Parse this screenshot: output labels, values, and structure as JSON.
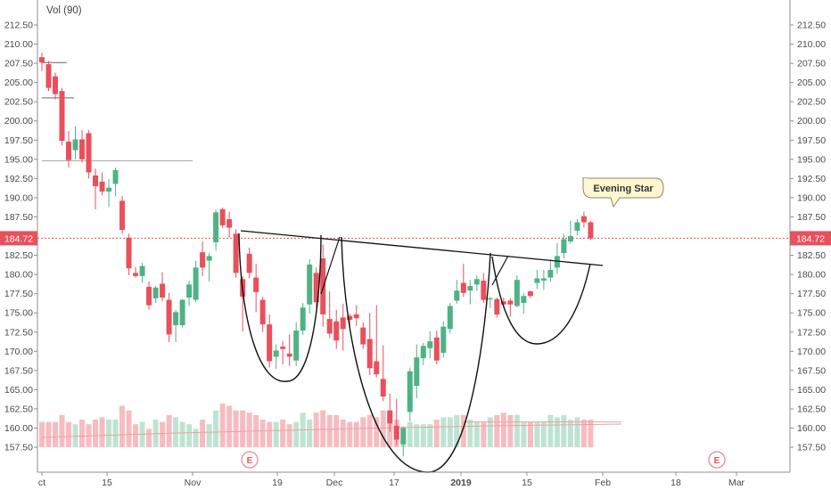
{
  "chart_data": {
    "type": "candlestick",
    "volume_label": "Vol (90)",
    "ylim": [
      155,
      212.5
    ],
    "y_ticks": [
      "157.50",
      "160.00",
      "162.50",
      "165.00",
      "167.50",
      "170.00",
      "172.50",
      "175.00",
      "177.50",
      "180.00",
      "182.50",
      "185.00",
      "187.50",
      "190.00",
      "192.50",
      "195.00",
      "197.50",
      "200.00",
      "202.50",
      "205.00",
      "207.50",
      "210.00",
      "212.50"
    ],
    "x_ticks": [
      "ct",
      "15",
      "Nov",
      "19",
      "Dec",
      "17",
      "2019",
      "15",
      "Feb",
      "18",
      "Mar"
    ],
    "last_price": "184.72",
    "annotations": {
      "pattern_callout": "Evening Star",
      "earnings_marker": "E"
    },
    "colors": {
      "up": "#4fb286",
      "down": "#e8505b",
      "volume_up": "#bfe3d2",
      "volume_down": "#f6bcc1",
      "price_line": "#e8505b",
      "callout_bg": "#fdf6cf",
      "callout_border": "#8a8a6a"
    },
    "candles": [
      {
        "o": 208.3,
        "h": 208.9,
        "l": 206.5,
        "c": 207.6
      },
      {
        "o": 207.4,
        "h": 207.8,
        "l": 203.9,
        "c": 204.3
      },
      {
        "o": 205.8,
        "h": 206.3,
        "l": 202.8,
        "c": 203.5
      },
      {
        "o": 203.9,
        "h": 204.3,
        "l": 196.8,
        "c": 197.4
      },
      {
        "o": 197.3,
        "h": 198.7,
        "l": 193.9,
        "c": 194.9
      },
      {
        "o": 196.2,
        "h": 199.3,
        "l": 195.0,
        "c": 197.6
      },
      {
        "o": 197.6,
        "h": 198.8,
        "l": 194.6,
        "c": 195.0
      },
      {
        "o": 198.4,
        "h": 198.8,
        "l": 192.5,
        "c": 193.3
      },
      {
        "o": 192.9,
        "h": 193.8,
        "l": 188.5,
        "c": 191.5
      },
      {
        "o": 192.1,
        "h": 193.3,
        "l": 190.3,
        "c": 190.8
      },
      {
        "o": 190.8,
        "h": 192.4,
        "l": 188.8,
        "c": 191.3
      },
      {
        "o": 191.8,
        "h": 193.9,
        "l": 190.2,
        "c": 193.6
      },
      {
        "o": 189.6,
        "h": 190.2,
        "l": 185.3,
        "c": 185.8
      },
      {
        "o": 184.8,
        "h": 185.3,
        "l": 179.9,
        "c": 180.8
      },
      {
        "o": 180.2,
        "h": 181.0,
        "l": 179.6,
        "c": 179.8
      },
      {
        "o": 179.8,
        "h": 181.5,
        "l": 178.9,
        "c": 181.1
      },
      {
        "o": 178.4,
        "h": 179.1,
        "l": 175.4,
        "c": 176.0
      },
      {
        "o": 176.9,
        "h": 178.5,
        "l": 176.3,
        "c": 178.3
      },
      {
        "o": 178.8,
        "h": 180.3,
        "l": 176.5,
        "c": 177.0
      },
      {
        "o": 176.7,
        "h": 177.6,
        "l": 171.2,
        "c": 172.2
      },
      {
        "o": 173.4,
        "h": 175.4,
        "l": 171.2,
        "c": 175.1
      },
      {
        "o": 173.4,
        "h": 176.8,
        "l": 173.1,
        "c": 176.7
      },
      {
        "o": 177.0,
        "h": 179.2,
        "l": 175.9,
        "c": 178.7
      },
      {
        "o": 176.7,
        "h": 181.8,
        "l": 176.4,
        "c": 180.9
      },
      {
        "o": 182.9,
        "h": 184.3,
        "l": 179.8,
        "c": 180.9
      },
      {
        "o": 181.8,
        "h": 182.8,
        "l": 179.1,
        "c": 182.4
      },
      {
        "o": 184.2,
        "h": 188.4,
        "l": 183.1,
        "c": 188.1
      },
      {
        "o": 188.5,
        "h": 188.7,
        "l": 186.1,
        "c": 186.4
      },
      {
        "o": 187.2,
        "h": 188.2,
        "l": 184.8,
        "c": 186.1
      },
      {
        "o": 185.3,
        "h": 185.9,
        "l": 179.6,
        "c": 180.2
      },
      {
        "o": 179.4,
        "h": 179.8,
        "l": 172.6,
        "c": 177.1
      },
      {
        "o": 182.7,
        "h": 183.5,
        "l": 179.5,
        "c": 180.2
      },
      {
        "o": 179.6,
        "h": 181.4,
        "l": 175.1,
        "c": 177.7
      },
      {
        "o": 176.7,
        "h": 177.1,
        "l": 172.5,
        "c": 173.5
      },
      {
        "o": 173.5,
        "h": 174.8,
        "l": 167.9,
        "c": 168.7
      },
      {
        "o": 169.3,
        "h": 170.9,
        "l": 167.7,
        "c": 170.1
      },
      {
        "o": 170.6,
        "h": 171.3,
        "l": 168.3,
        "c": 170.3
      },
      {
        "o": 169.7,
        "h": 172.2,
        "l": 168.1,
        "c": 169.3
      },
      {
        "o": 168.8,
        "h": 173.8,
        "l": 168.1,
        "c": 172.7
      },
      {
        "o": 172.7,
        "h": 176.3,
        "l": 172.1,
        "c": 175.7
      },
      {
        "o": 176.1,
        "h": 182.0,
        "l": 174.9,
        "c": 181.3
      },
      {
        "o": 180.2,
        "h": 180.9,
        "l": 175.7,
        "c": 176.4
      },
      {
        "o": 182.1,
        "h": 183.9,
        "l": 173.2,
        "c": 174.8
      },
      {
        "o": 174.2,
        "h": 177.8,
        "l": 171.7,
        "c": 172.3
      },
      {
        "o": 173.9,
        "h": 175.4,
        "l": 170.3,
        "c": 171.4
      },
      {
        "o": 174.4,
        "h": 176.2,
        "l": 170.1,
        "c": 172.9
      },
      {
        "o": 174.6,
        "h": 174.9,
        "l": 173.1,
        "c": 174.1
      },
      {
        "o": 174.8,
        "h": 176.0,
        "l": 173.3,
        "c": 174.3
      },
      {
        "o": 173.1,
        "h": 173.8,
        "l": 170.3,
        "c": 170.9
      },
      {
        "o": 171.6,
        "h": 175.0,
        "l": 166.9,
        "c": 167.8
      },
      {
        "o": 168.7,
        "h": 176.0,
        "l": 166.6,
        "c": 167.0
      },
      {
        "o": 166.4,
        "h": 170.8,
        "l": 163.5,
        "c": 164.1
      },
      {
        "o": 162.3,
        "h": 164.5,
        "l": 159.5,
        "c": 160.6
      },
      {
        "o": 160.3,
        "h": 163.8,
        "l": 157.8,
        "c": 158.5
      },
      {
        "o": 157.9,
        "h": 160.2,
        "l": 156.3,
        "c": 160.0
      },
      {
        "o": 162.1,
        "h": 167.9,
        "l": 160.9,
        "c": 167.4
      },
      {
        "o": 165.5,
        "h": 170.9,
        "l": 163.9,
        "c": 169.2
      },
      {
        "o": 169.1,
        "h": 171.1,
        "l": 168.2,
        "c": 170.7
      },
      {
        "o": 170.4,
        "h": 172.6,
        "l": 169.1,
        "c": 171.3
      },
      {
        "o": 171.8,
        "h": 172.7,
        "l": 168.3,
        "c": 168.8
      },
      {
        "o": 169.8,
        "h": 173.9,
        "l": 169.2,
        "c": 173.2
      },
      {
        "o": 172.9,
        "h": 176.3,
        "l": 172.3,
        "c": 175.9
      },
      {
        "o": 176.6,
        "h": 179.3,
        "l": 176.2,
        "c": 177.9
      },
      {
        "o": 178.9,
        "h": 181.4,
        "l": 177.1,
        "c": 177.6
      },
      {
        "o": 177.9,
        "h": 179.3,
        "l": 176.1,
        "c": 178.5
      },
      {
        "o": 178.7,
        "h": 179.9,
        "l": 177.9,
        "c": 179.4
      },
      {
        "o": 179.2,
        "h": 180.2,
        "l": 176.3,
        "c": 176.7
      },
      {
        "o": 176.8,
        "h": 177.1,
        "l": 175.6,
        "c": 176.9
      },
      {
        "o": 176.8,
        "h": 177.0,
        "l": 174.4,
        "c": 174.8
      },
      {
        "o": 176.5,
        "h": 177.0,
        "l": 175.7,
        "c": 176.1
      },
      {
        "o": 176.6,
        "h": 176.9,
        "l": 174.5,
        "c": 176.1
      },
      {
        "o": 175.9,
        "h": 179.9,
        "l": 175.7,
        "c": 179.3
      },
      {
        "o": 176.3,
        "h": 177.6,
        "l": 174.9,
        "c": 177.2
      },
      {
        "o": 177.8,
        "h": 177.9,
        "l": 176.9,
        "c": 177.2
      },
      {
        "o": 178.9,
        "h": 180.6,
        "l": 178.1,
        "c": 179.5
      },
      {
        "o": 179.2,
        "h": 180.6,
        "l": 178.0,
        "c": 179.5
      },
      {
        "o": 179.6,
        "h": 182.0,
        "l": 179.1,
        "c": 180.6
      },
      {
        "o": 180.9,
        "h": 184.1,
        "l": 180.1,
        "c": 182.4
      },
      {
        "o": 182.8,
        "h": 185.3,
        "l": 182.1,
        "c": 184.6
      },
      {
        "o": 184.3,
        "h": 187.0,
        "l": 184.0,
        "c": 185.0
      },
      {
        "o": 185.7,
        "h": 187.2,
        "l": 185.1,
        "c": 186.8
      },
      {
        "o": 187.6,
        "h": 188.2,
        "l": 186.1,
        "c": 186.8
      },
      {
        "o": 186.8,
        "h": 187.0,
        "l": 184.5,
        "c": 184.7
      }
    ],
    "volume": [
      59,
      59,
      59,
      62,
      59,
      58,
      60,
      58,
      60,
      61,
      60,
      60,
      66,
      64,
      58,
      59,
      56,
      60,
      59,
      62,
      61,
      59,
      58,
      56,
      60,
      58,
      64,
      67,
      66,
      64,
      64,
      63,
      62,
      60,
      59,
      59,
      60,
      58,
      59,
      63,
      60,
      63,
      64,
      62,
      62,
      60,
      59,
      59,
      61,
      62,
      61,
      64,
      62,
      60,
      57,
      59,
      58,
      58,
      58,
      60,
      61,
      61,
      62,
      62,
      60,
      59,
      59,
      61,
      62,
      63,
      62,
      62,
      59,
      59,
      59,
      59,
      62,
      61,
      62,
      60,
      61,
      60,
      60
    ]
  }
}
